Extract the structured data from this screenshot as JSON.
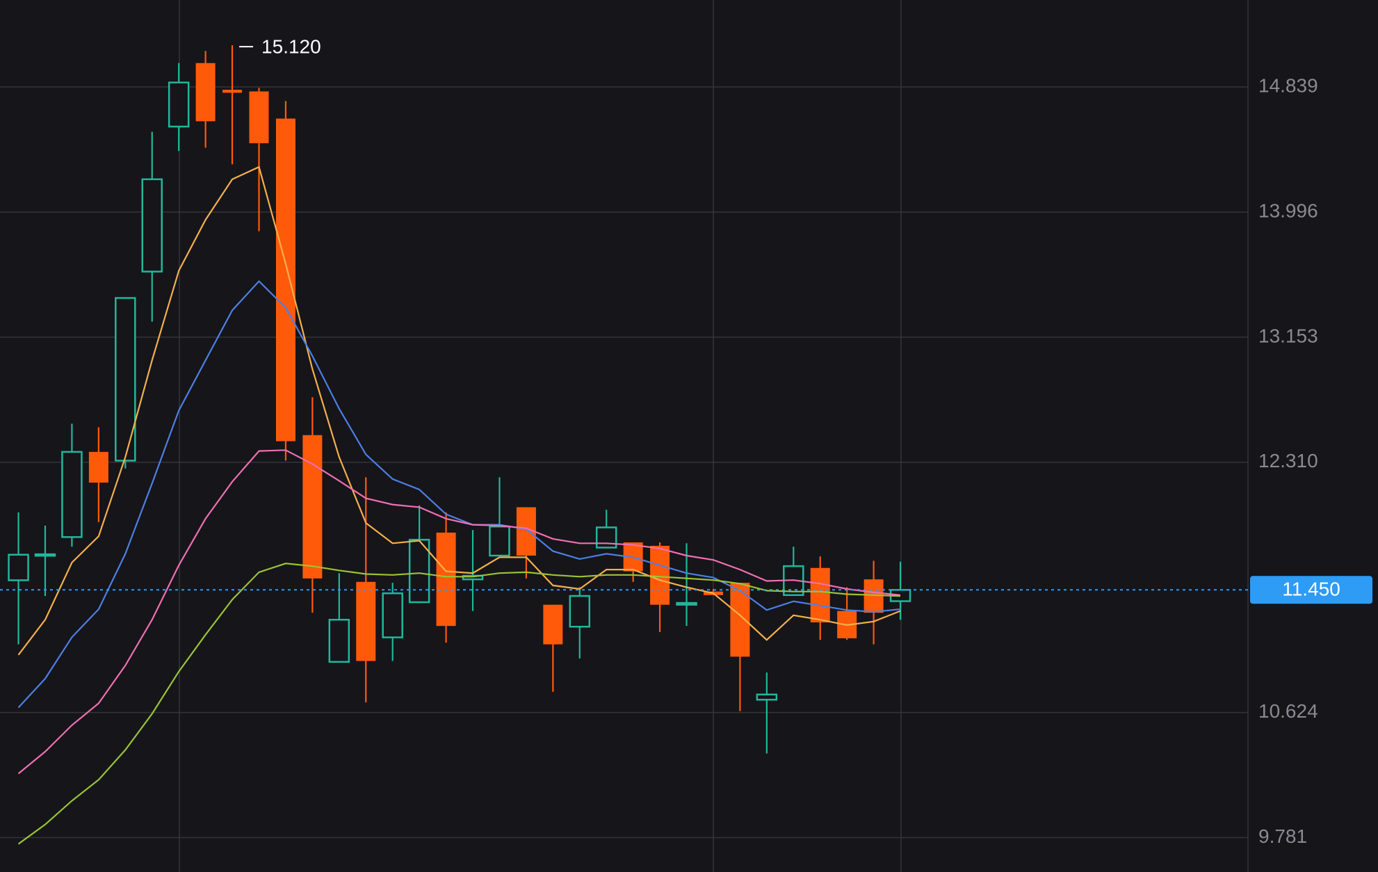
{
  "chart_data": {
    "type": "candlestick",
    "categories": [
      null,
      null,
      null,
      null,
      null,
      null,
      null,
      null,
      null,
      null,
      null,
      null,
      null,
      null,
      null,
      null,
      null,
      null,
      null,
      null,
      null,
      null,
      null,
      null,
      null,
      null,
      null,
      null,
      null,
      null,
      null,
      null,
      null,
      null
    ],
    "open": [
      11.515,
      11.68,
      11.806,
      12.38,
      12.321,
      13.595,
      14.572,
      15.0,
      14.82,
      14.809,
      14.626,
      12.493,
      10.965,
      11.504,
      11.13,
      11.367,
      11.836,
      11.521,
      11.681,
      12.007,
      11.35,
      11.202,
      11.735,
      11.77,
      11.747,
      11.35,
      11.439,
      11.498,
      10.71,
      11.415,
      11.598,
      11.308,
      11.521,
      11.374
    ],
    "high": [
      11.972,
      11.883,
      12.57,
      12.546,
      13.417,
      14.537,
      15.0,
      15.082,
      15.12,
      14.833,
      14.744,
      12.748,
      11.563,
      12.209,
      11.498,
      12.019,
      11.972,
      11.853,
      12.209,
      12.007,
      11.35,
      11.468,
      11.99,
      11.77,
      11.77,
      11.764,
      11.456,
      11.498,
      10.893,
      11.741,
      11.676,
      11.468,
      11.646,
      11.64
    ],
    "low": [
      11.083,
      11.409,
      11.741,
      11.907,
      12.268,
      13.257,
      14.407,
      14.43,
      14.318,
      13.867,
      12.321,
      11.296,
      10.965,
      10.692,
      10.971,
      11.367,
      11.095,
      11.308,
      11.681,
      11.527,
      10.763,
      10.988,
      11.735,
      11.504,
      11.166,
      11.207,
      11.415,
      10.633,
      10.348,
      11.415,
      11.113,
      11.113,
      11.083,
      11.249
    ],
    "close": [
      11.687,
      11.69,
      12.38,
      12.173,
      13.417,
      14.217,
      14.869,
      14.608,
      14.8,
      14.46,
      12.452,
      11.527,
      11.249,
      10.971,
      11.427,
      11.788,
      11.207,
      11.545,
      11.877,
      11.681,
      11.083,
      11.409,
      11.871,
      11.575,
      11.35,
      11.362,
      11.415,
      11.0,
      10.745,
      11.61,
      11.231,
      11.124,
      11.296,
      11.45
    ],
    "up_color": "#20b89c",
    "down_color": "#ff5a0a",
    "series": [
      {
        "color": "#f5b04b",
        "values": [
          11.012,
          11.249,
          11.634,
          11.812,
          12.345,
          12.997,
          13.601,
          13.944,
          14.217,
          14.3,
          13.648,
          12.937,
          12.345,
          11.901,
          11.764,
          11.782,
          11.575,
          11.563,
          11.67,
          11.67,
          11.48,
          11.456,
          11.587,
          11.587,
          11.516,
          11.468,
          11.427,
          11.279,
          11.113,
          11.279,
          11.249,
          11.213,
          11.237,
          11.308
        ]
      },
      {
        "color": "#4c80e4",
        "values": [
          10.657,
          10.852,
          11.131,
          11.32,
          11.693,
          12.167,
          12.659,
          12.997,
          13.334,
          13.53,
          13.352,
          13.026,
          12.671,
          12.363,
          12.197,
          12.126,
          11.96,
          11.889,
          11.889,
          11.859,
          11.711,
          11.658,
          11.693,
          11.67,
          11.616,
          11.563,
          11.533,
          11.445,
          11.314,
          11.373,
          11.344,
          11.314,
          11.302,
          11.32
        ]
      },
      {
        "color": "#f06fb4",
        "values": [
          10.212,
          10.36,
          10.538,
          10.686,
          10.941,
          11.249,
          11.616,
          11.93,
          12.179,
          12.386,
          12.392,
          12.298,
          12.185,
          12.067,
          12.025,
          12.007,
          11.93,
          11.889,
          11.883,
          11.865,
          11.794,
          11.764,
          11.764,
          11.753,
          11.729,
          11.681,
          11.652,
          11.587,
          11.51,
          11.516,
          11.492,
          11.456,
          11.433,
          11.415
        ]
      },
      {
        "color": "#9ac534",
        "values": [
          9.738,
          9.869,
          10.029,
          10.171,
          10.372,
          10.615,
          10.9,
          11.148,
          11.385,
          11.569,
          11.628,
          11.61,
          11.581,
          11.557,
          11.551,
          11.563,
          11.539,
          11.539,
          11.563,
          11.569,
          11.551,
          11.539,
          11.551,
          11.551,
          11.539,
          11.528,
          11.516,
          11.492,
          11.445,
          11.439,
          11.439,
          11.421,
          11.415,
          11.409
        ]
      }
    ],
    "ylim": [
      9.549,
      15.425
    ],
    "yticks": [
      14.839,
      13.996,
      13.153,
      {
        "value": 12.31,
        "label": "12.310"
      },
      10.624,
      9.781
    ],
    "grid": true,
    "last_price": {
      "value": 11.45,
      "label": "11.450"
    },
    "max_label": {
      "value": 15.12,
      "label": "15.120",
      "index": 8
    }
  }
}
